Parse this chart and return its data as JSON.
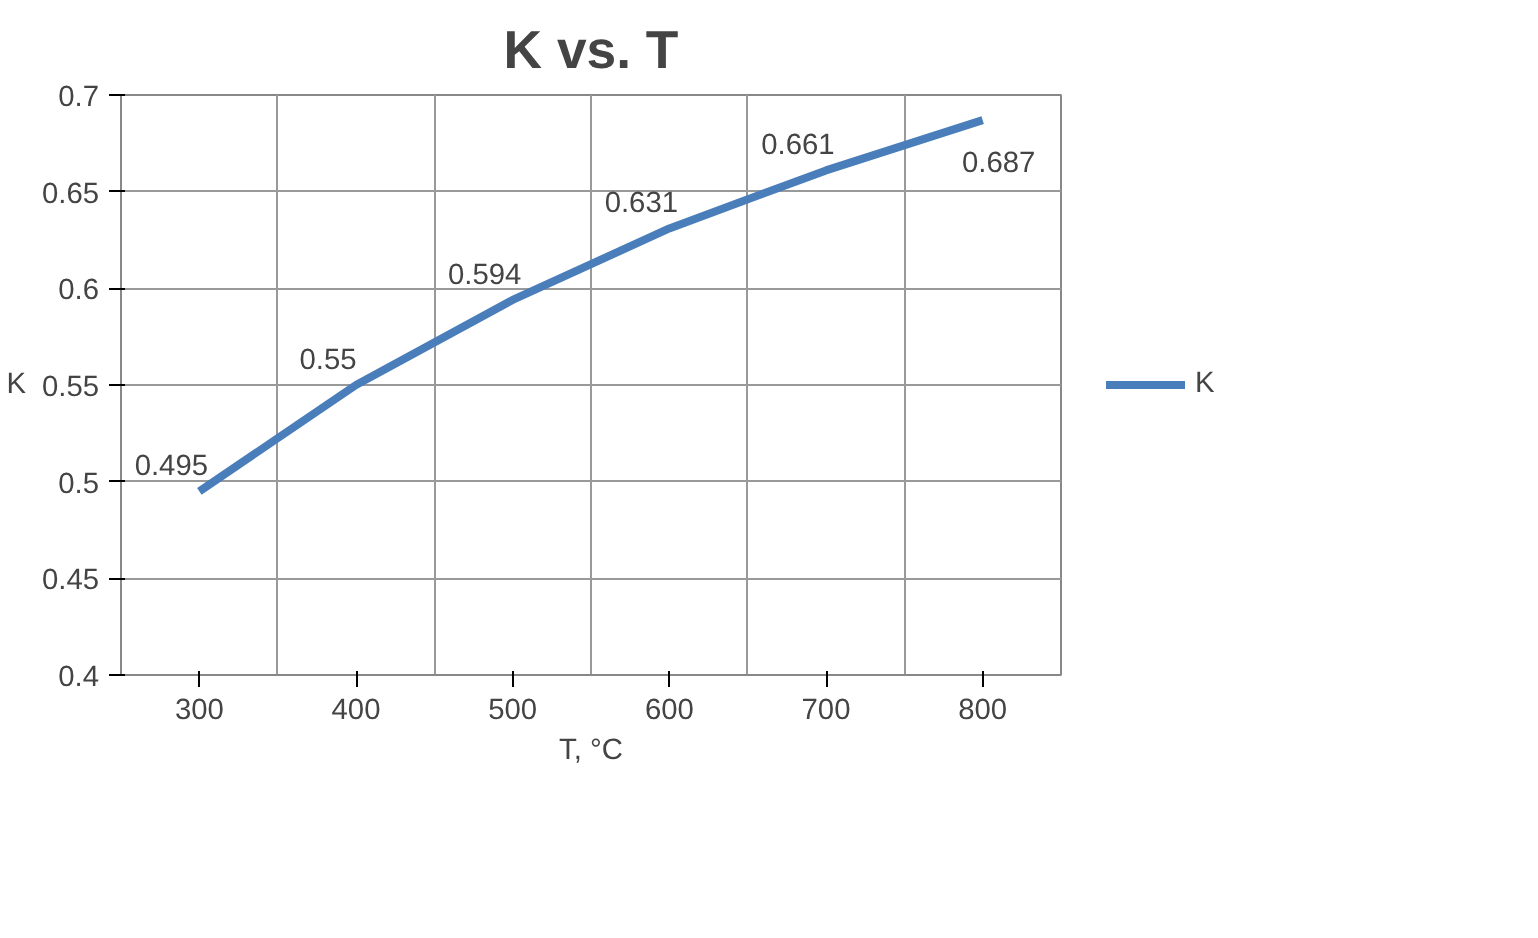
{
  "chart_data": {
    "type": "line",
    "title": "K vs. T",
    "xlabel": "T, °C",
    "ylabel": "K",
    "categories": [
      "300",
      "400",
      "500",
      "600",
      "700",
      "800"
    ],
    "series": [
      {
        "name": "K",
        "color": "#4a7ebb",
        "values": [
          0.495,
          0.55,
          0.594,
          0.631,
          0.661,
          0.687
        ]
      }
    ],
    "ylim": [
      0.4,
      0.7
    ],
    "yticks": [
      0.4,
      0.45,
      0.5,
      0.55,
      0.6,
      0.65,
      0.7
    ],
    "grid": true,
    "legend": "right",
    "data_labels": true,
    "marker": "none",
    "line_style": "solid"
  }
}
